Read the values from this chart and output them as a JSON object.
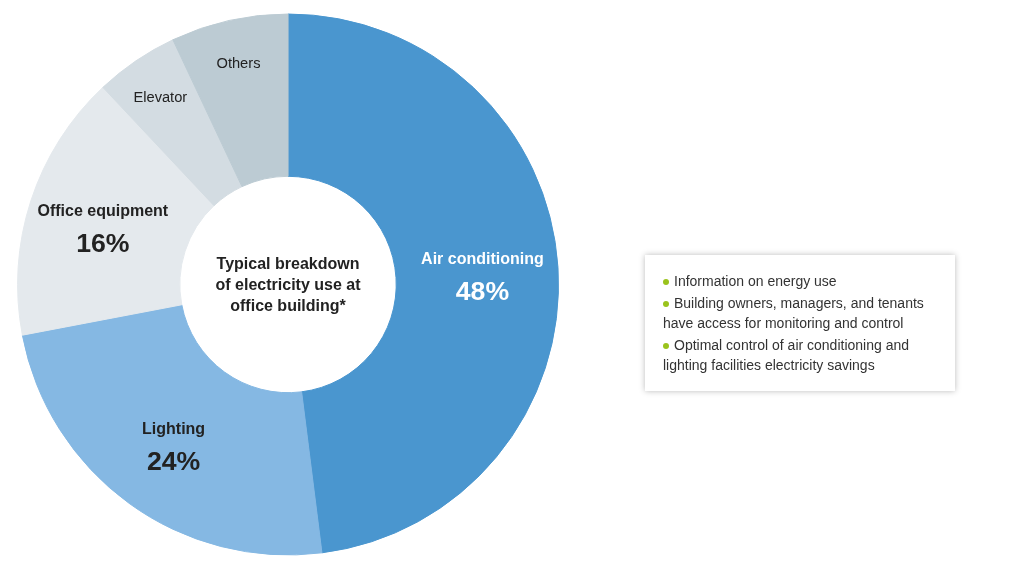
{
  "chart_data": [
    {
      "type": "donut",
      "title": "Typical breakdown\nof electricity use at\noffice building*",
      "categories": [
        "Air conditioning",
        "Lighting",
        "Office equipment",
        "Elevator",
        "Others"
      ],
      "values": [
        48,
        24,
        16,
        5,
        7
      ],
      "colors": [
        "#4a96cf",
        "#85b8e3",
        "#e4e9ed",
        "#d3dce2",
        "#bccbd3"
      ],
      "value_labels": [
        "48%",
        "24%",
        "16%",
        null,
        null
      ]
    },
    {
      "type": "other",
      "annotations": [
        "Information on energy use",
        "Building owners, managers, and tenants have access for monitoring and control",
        "Optimal control of air conditioning and lighting facilities electricity savings"
      ]
    }
  ]
}
